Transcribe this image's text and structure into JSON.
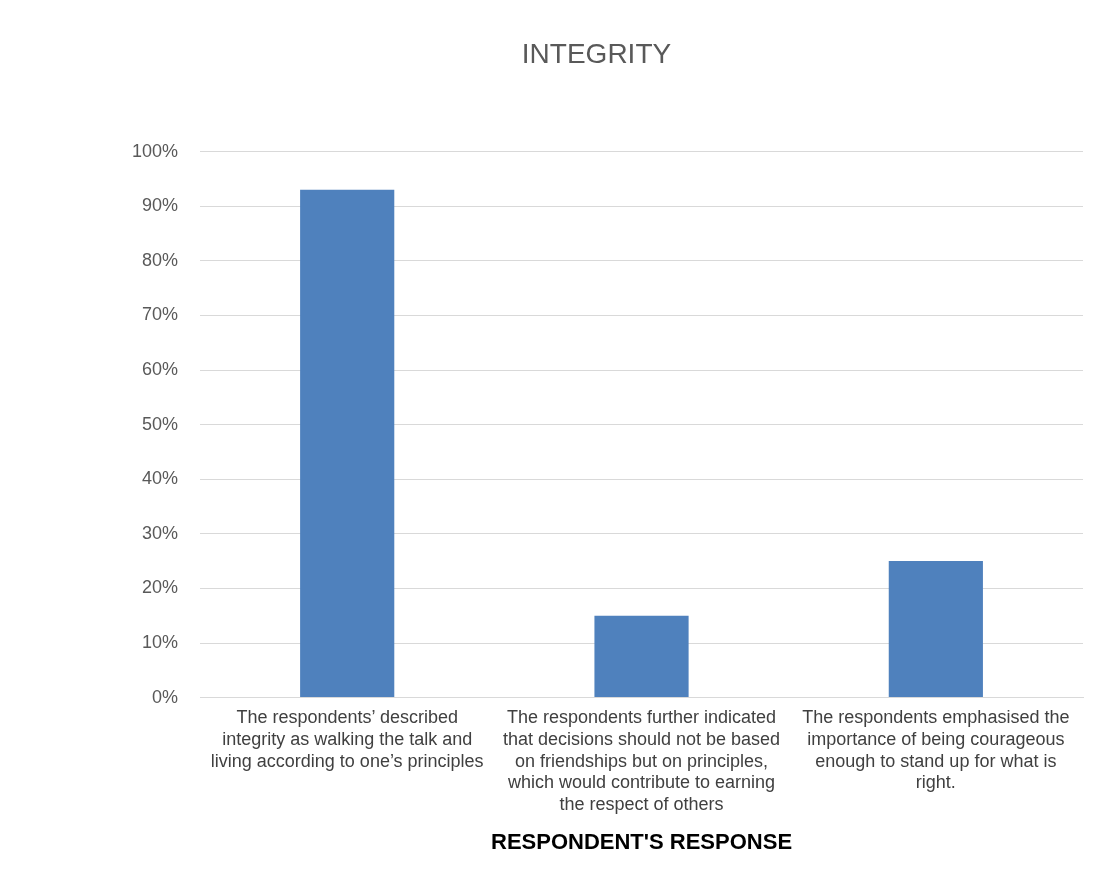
{
  "chart_data": {
    "type": "bar",
    "title": "INTEGRITY",
    "xlabel": "RESPONDENT'S RESPONSE",
    "categories": [
      "The respondents’ described integrity as walking the talk and living according to one’s principles",
      "The respondents further indicated that decisions should not be based on friendships but on principles, which would contribute to earning the respect of others",
      "The respondents emphasised the importance of being courageous enough to stand up for what is right."
    ],
    "values": [
      0.93,
      0.15,
      0.25
    ],
    "color": "#4f81bd",
    "ylim": [
      0,
      1
    ],
    "yticks": [
      {
        "value": 0,
        "label": "0%"
      },
      {
        "value": 0.1,
        "label": "10%"
      },
      {
        "value": 0.2,
        "label": "20%"
      },
      {
        "value": 0.3,
        "label": "30%"
      },
      {
        "value": 0.4,
        "label": "40%"
      },
      {
        "value": 0.5,
        "label": "50%"
      },
      {
        "value": 0.6,
        "label": "60%"
      },
      {
        "value": 0.7,
        "label": "70%"
      },
      {
        "value": 0.8,
        "label": "80%"
      },
      {
        "value": 0.9,
        "label": "90%"
      },
      {
        "value": 1,
        "label": "100%"
      }
    ],
    "grid": "y",
    "legend": false
  }
}
